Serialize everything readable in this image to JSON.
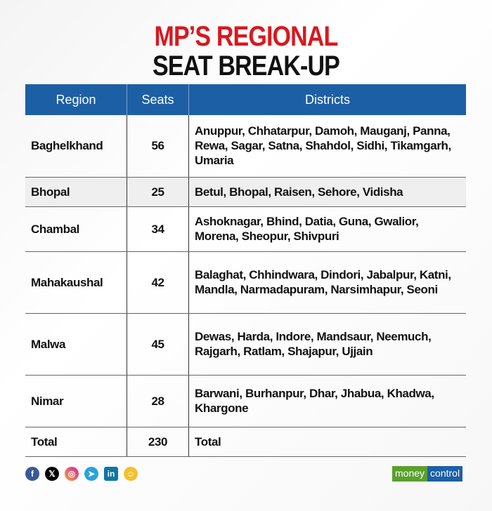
{
  "title": {
    "line1": "MP’S REGIONAL",
    "line2": "SEAT BREAK-UP"
  },
  "table": {
    "headers": [
      "Region",
      "Seats",
      "Districts"
    ],
    "rows": [
      {
        "region": "Baghelkhand",
        "seats": "56",
        "districts": "Anuppur, Chhatarpur, Damoh, Mauganj, Panna, Rewa, Sagar, Satna, Shahdol, Sidhi, Tikamgarh, Umaria"
      },
      {
        "region": "Bhopal",
        "seats": "25",
        "districts": "Betul, Bhopal, Raisen, Sehore, Vidisha"
      },
      {
        "region": "Chambal",
        "seats": "34",
        "districts": "Ashoknagar, Bhind, Datia, Guna, Gwalior, Morena, Sheopur, Shivpuri"
      },
      {
        "region": "Mahakaushal",
        "seats": "42",
        "districts": "Balaghat, Chhindwara, Dindori, Jabalpur, Katni, Mandla, Narmadapuram, Narsimhapur, Seoni"
      },
      {
        "region": "Malwa",
        "seats": "45",
        "districts": "Dewas, Harda, Indore, Mandsaur, Neemuch, Rajgarh, Ratlam, Shajapur, Ujjain"
      },
      {
        "region": "Nimar",
        "seats": "28",
        "districts": "Barwani, Burhanpur, Dhar, Jhabua, Khadwa, Khargone"
      },
      {
        "region": "Total",
        "seats": "230",
        "districts": "Total"
      }
    ]
  },
  "footer": {
    "social_icons": [
      "facebook-icon",
      "x-icon",
      "instagram-icon",
      "telegram-icon",
      "linkedin-icon",
      "snapchat-icon"
    ],
    "logo": {
      "part1": "money",
      "part2": "control"
    }
  },
  "colors": {
    "accent_red": "#d71920",
    "header_blue": "#1d5fa5",
    "logo_green": "#5aa02c"
  }
}
